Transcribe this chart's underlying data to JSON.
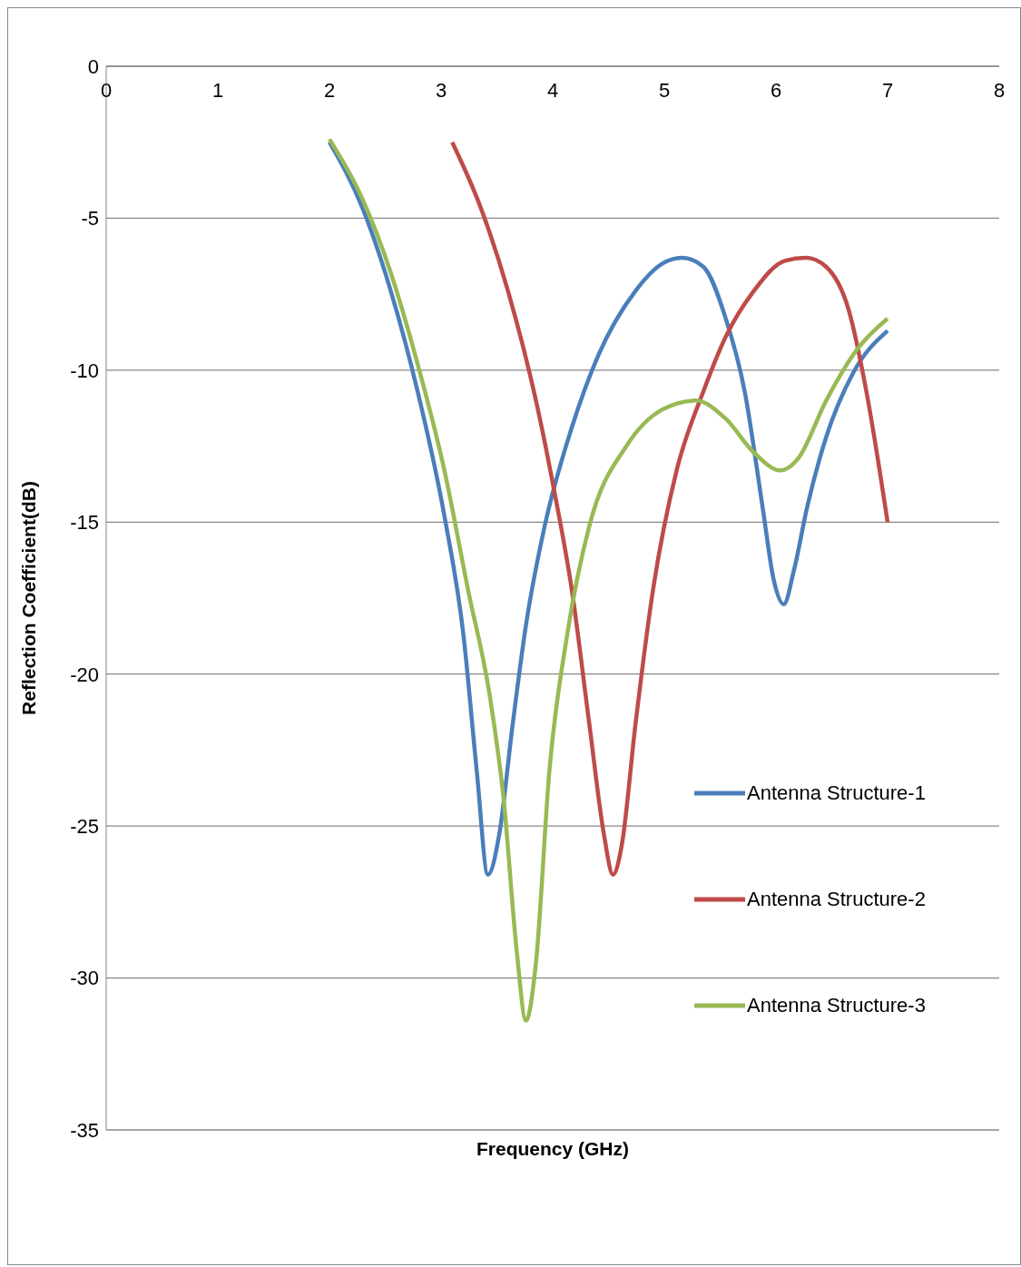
{
  "chart_data": {
    "type": "line",
    "xlabel": "Frequency (GHz)",
    "ylabel": "Reflection Coefficient(dB)",
    "xlim": [
      0,
      8
    ],
    "xticks": [
      0,
      1,
      2,
      3,
      4,
      5,
      6,
      7,
      8
    ],
    "ylim": [
      -35,
      0
    ],
    "yticks": [
      -35,
      -30,
      -25,
      -20,
      -15,
      -10,
      -5,
      0
    ],
    "grid": "y",
    "legend": "bottom right",
    "series": [
      {
        "name": "Antenna Structure-1",
        "color": "#4a7ebb",
        "x": [
          2,
          2.3,
          2.55,
          2.79,
          3.03,
          3.2,
          3.32,
          3.42,
          3.52,
          3.64,
          3.76,
          3.93,
          4.17,
          4.41,
          4.74,
          4.98,
          5.16,
          5.35,
          5.55,
          5.72,
          5.88,
          5.98,
          6.07,
          6.16,
          6.28,
          6.45,
          6.69,
          7
        ],
        "values": [
          -2.5,
          -4.7,
          -7.4,
          -10.7,
          -14.8,
          -18.7,
          -23.2,
          -26.6,
          -25.3,
          -21.7,
          -18.4,
          -15.1,
          -11.9,
          -9.5,
          -7.4,
          -6.5,
          -6.3,
          -6.6,
          -8.3,
          -10.7,
          -14.5,
          -16.9,
          -17.7,
          -16.6,
          -14.5,
          -12.2,
          -10.1,
          -8.7
        ]
      },
      {
        "name": "Antenna Structure-2",
        "color": "#be4b48",
        "x": [
          3.1,
          3.36,
          3.6,
          3.85,
          4.01,
          4.17,
          4.33,
          4.46,
          4.54,
          4.62,
          4.74,
          4.9,
          5.11,
          5.35,
          5.55,
          5.8,
          6.08,
          6.27,
          6.45,
          6.65,
          6.81,
          7
        ],
        "values": [
          -2.5,
          -4.7,
          -7.4,
          -11,
          -13.9,
          -17.2,
          -21.7,
          -25.3,
          -26.6,
          -25.6,
          -21.7,
          -17.2,
          -13.3,
          -10.7,
          -8.9,
          -7.4,
          -6.4,
          -6.3,
          -6.6,
          -8,
          -10.7,
          -15
        ]
      },
      {
        "name": "Antenna Structure-3",
        "color": "#98b954",
        "x": [
          2,
          2.3,
          2.55,
          2.79,
          3.03,
          3.24,
          3.44,
          3.56,
          3.68,
          3.76,
          3.85,
          3.97,
          4.13,
          4.33,
          4.66,
          4.98,
          5.28,
          5.55,
          5.8,
          6.04,
          6.2,
          6.45,
          6.73,
          7
        ],
        "values": [
          -2.4,
          -4.4,
          -6.8,
          -9.8,
          -13.3,
          -17.2,
          -20.8,
          -24.1,
          -29.2,
          -31.4,
          -29.5,
          -23.2,
          -18.7,
          -15.1,
          -12.5,
          -11.3,
          -11,
          -11.6,
          -12.7,
          -13.3,
          -12.9,
          -11,
          -9.3,
          -8.3
        ]
      }
    ]
  }
}
